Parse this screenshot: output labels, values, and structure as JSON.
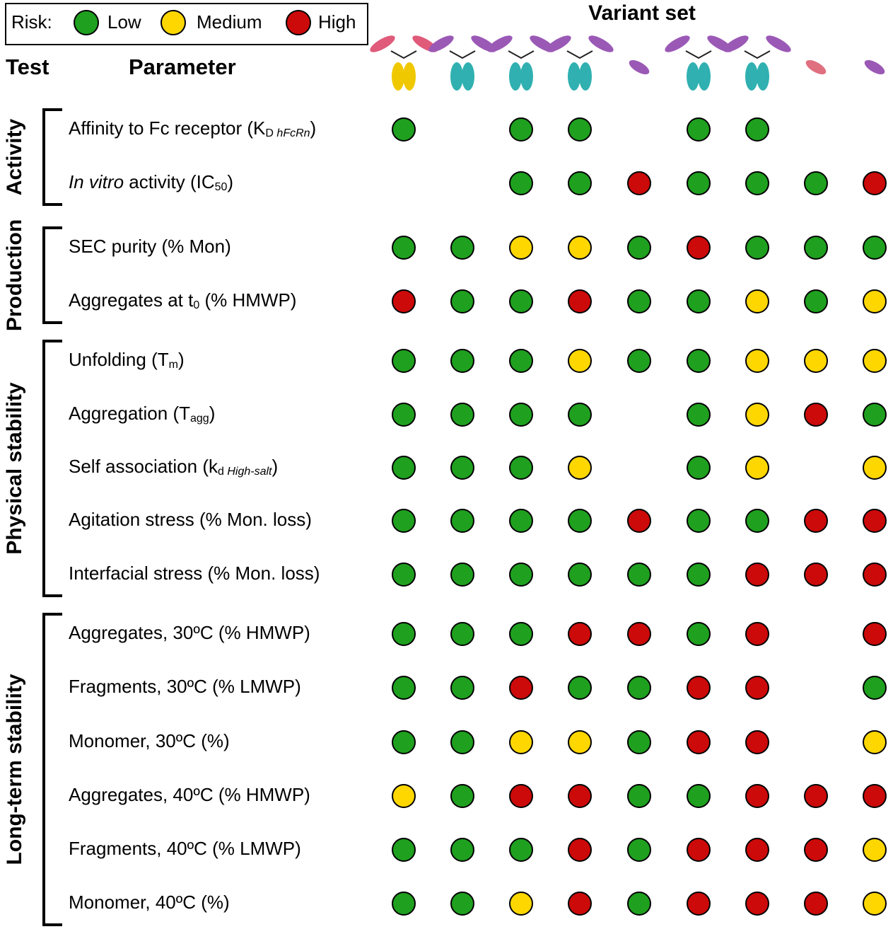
{
  "legend": {
    "label": "Risk:",
    "items": [
      {
        "name": "Low",
        "color": "#1fa01f"
      },
      {
        "name": "Medium",
        "color": "#ffd700"
      },
      {
        "name": "High",
        "color": "#cc0a0a"
      }
    ]
  },
  "header": {
    "test": "Test",
    "parameter": "Parameter",
    "variant_set": "Variant set"
  },
  "groups": [
    {
      "name": "Activity",
      "rows": [
        {
          "parameter": [
            {
              "text": "Affinity to Fc receptor (K"
            },
            {
              "text": "D",
              "sub": true
            },
            {
              "text": " hFcRn",
              "sub": true,
              "italic": true
            },
            {
              "text": ")"
            }
          ],
          "risks": [
            0,
            null,
            0,
            0,
            null,
            0,
            0,
            null,
            null
          ]
        },
        {
          "parameter": [
            {
              "text": "In vitro",
              "italic": true
            },
            {
              "text": " activity (IC"
            },
            {
              "text": "50",
              "sub": true
            },
            {
              "text": ")"
            }
          ],
          "risks": [
            null,
            null,
            0,
            0,
            2,
            0,
            0,
            0,
            2
          ]
        }
      ]
    },
    {
      "name": "Production",
      "rows": [
        {
          "parameter": [
            {
              "text": "SEC purity (% Mon)"
            }
          ],
          "risks": [
            0,
            0,
            1,
            1,
            0,
            2,
            0,
            0,
            0
          ]
        },
        {
          "parameter": [
            {
              "text": "Aggregates at t"
            },
            {
              "text": "0",
              "sub": true
            },
            {
              "text": " (% HMWP)"
            }
          ],
          "risks": [
            2,
            0,
            0,
            2,
            0,
            0,
            1,
            0,
            1
          ]
        }
      ]
    },
    {
      "name": "Physical stability",
      "rows": [
        {
          "parameter": [
            {
              "text": "Unfolding (T"
            },
            {
              "text": "m",
              "sub": true
            },
            {
              "text": ")"
            }
          ],
          "risks": [
            0,
            0,
            0,
            1,
            0,
            0,
            1,
            1,
            1
          ]
        },
        {
          "parameter": [
            {
              "text": "Aggregation (T"
            },
            {
              "text": "agg",
              "sub": true
            },
            {
              "text": ")"
            }
          ],
          "risks": [
            0,
            0,
            0,
            0,
            null,
            0,
            1,
            2,
            0
          ]
        },
        {
          "parameter": [
            {
              "text": "Self association (k"
            },
            {
              "text": "d",
              "sub": true
            },
            {
              "text": " High-salt",
              "sub": true,
              "italic": true
            },
            {
              "text": ")"
            }
          ],
          "risks": [
            0,
            0,
            0,
            1,
            null,
            0,
            1,
            null,
            1
          ]
        },
        {
          "parameter": [
            {
              "text": "Agitation stress (% Mon. loss)"
            }
          ],
          "risks": [
            0,
            0,
            0,
            0,
            2,
            0,
            0,
            2,
            2
          ]
        },
        {
          "parameter": [
            {
              "text": "Interfacial stress (% Mon. loss)"
            }
          ],
          "risks": [
            0,
            0,
            0,
            0,
            0,
            0,
            2,
            2,
            2
          ]
        }
      ]
    },
    {
      "name": "Long-term stability",
      "rows": [
        {
          "parameter": [
            {
              "text": "Aggregates, 30ºC (% HMWP)"
            }
          ],
          "risks": [
            0,
            0,
            0,
            2,
            2,
            0,
            2,
            null,
            2
          ]
        },
        {
          "parameter": [
            {
              "text": "Fragments, 30ºC (% LMWP)"
            }
          ],
          "risks": [
            0,
            0,
            2,
            0,
            0,
            2,
            2,
            null,
            0
          ]
        },
        {
          "parameter": [
            {
              "text": "Monomer, 30ºC (%)"
            }
          ],
          "risks": [
            0,
            0,
            1,
            1,
            0,
            2,
            2,
            null,
            1
          ]
        },
        {
          "parameter": [
            {
              "text": "Aggregates, 40ºC (% HMWP)"
            }
          ],
          "risks": [
            1,
            0,
            2,
            2,
            0,
            0,
            2,
            2,
            2
          ]
        },
        {
          "parameter": [
            {
              "text": "Fragments, 40ºC (% LMWP)"
            }
          ],
          "risks": [
            0,
            0,
            0,
            2,
            0,
            2,
            2,
            2,
            1
          ]
        },
        {
          "parameter": [
            {
              "text": "Monomer, 40ºC (%)"
            }
          ],
          "risks": [
            0,
            0,
            1,
            2,
            0,
            2,
            2,
            2,
            1
          ]
        }
      ]
    }
  ]
}
